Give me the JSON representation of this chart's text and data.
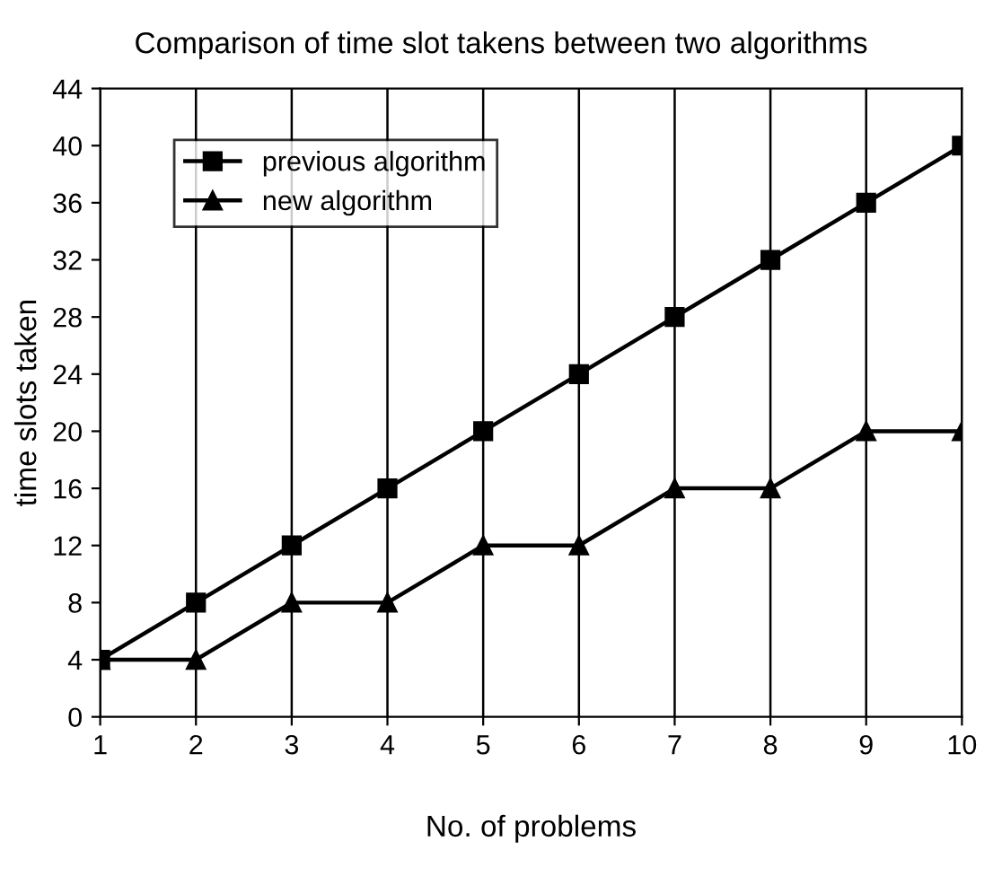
{
  "chart_data": {
    "type": "line",
    "title": "Comparison of time slot takens between two algorithms",
    "xlabel": "No. of problems",
    "ylabel": "time slots taken",
    "x": [
      1,
      2,
      3,
      4,
      5,
      6,
      7,
      8,
      9,
      10
    ],
    "series": [
      {
        "name": "previous algorithm",
        "color": "#000000",
        "marker": "square",
        "values": [
          4,
          8,
          12,
          16,
          20,
          24,
          28,
          32,
          36,
          40
        ]
      },
      {
        "name": "new algorithm",
        "color": "#000000",
        "marker": "triangle",
        "values": [
          4,
          4,
          8,
          8,
          12,
          12,
          16,
          16,
          20,
          20
        ]
      }
    ],
    "xlim": [
      1,
      10
    ],
    "xticks": [
      1,
      2,
      3,
      4,
      5,
      6,
      7,
      8,
      9,
      10
    ],
    "ylim": [
      0,
      44
    ],
    "yticks": [
      0,
      4,
      8,
      12,
      16,
      20,
      24,
      28,
      32,
      36,
      40,
      44
    ],
    "grid": "x",
    "legend": "top left",
    "line_style": "solid"
  }
}
